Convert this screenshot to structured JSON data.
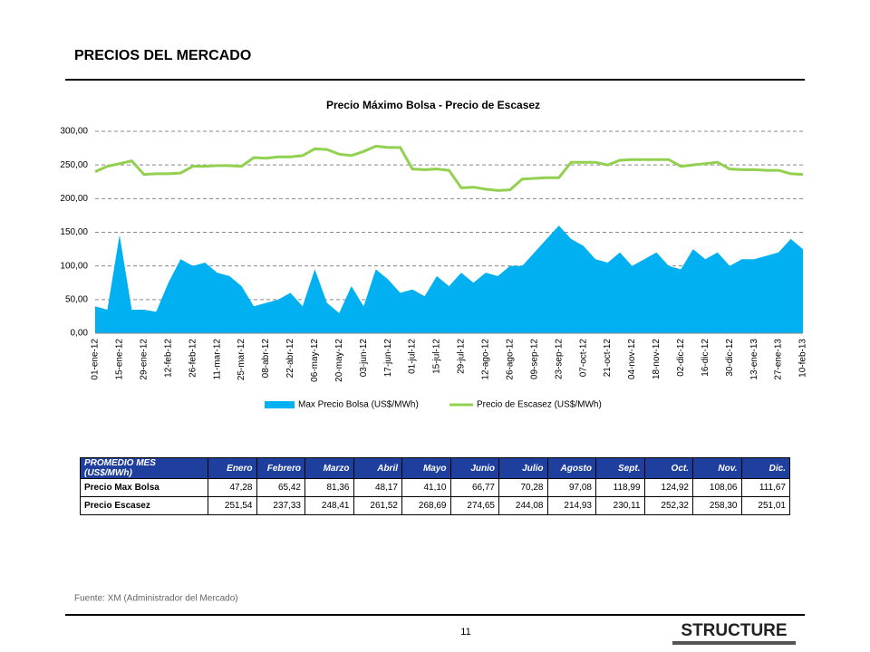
{
  "header": {
    "title": "PRECIOS DEL MERCADO"
  },
  "chart_data": {
    "type": "area-line",
    "title": "Precio Máximo Bolsa - Precio de Escasez",
    "categories": [
      "01-ene-12",
      null,
      "15-ene-12",
      null,
      "29-ene-12",
      null,
      "12-feb-12",
      null,
      "26-feb-12",
      null,
      "11-mar-12",
      null,
      "25-mar-12",
      null,
      "08-abr-12",
      null,
      "22-abr-12",
      null,
      "06-may-12",
      null,
      "20-may-12",
      null,
      "03-jun-12",
      null,
      "17-jun-12",
      null,
      "01-jul-12",
      null,
      "15-jul-12",
      null,
      "29-jul-12",
      null,
      "12-ago-12",
      null,
      "26-ago-12",
      null,
      "09-sep-12",
      null,
      "23-sep-12",
      null,
      "07-oct-12",
      null,
      "21-oct-12",
      null,
      "04-nov-12",
      null,
      "18-nov-12",
      null,
      "02-dic-12",
      null,
      "16-dic-12",
      null,
      "30-dic-12",
      null,
      "13-ene-13",
      null,
      "27-ene-13",
      null,
      "10-feb-13"
    ],
    "series": [
      {
        "name": "Max Precio Bolsa (US$/MWh)",
        "color": "#00b0f0",
        "kind": "area",
        "values": [
          40,
          35,
          146,
          35,
          35,
          32,
          75,
          110,
          100,
          105,
          90,
          85,
          70,
          40,
          45,
          50,
          60,
          40,
          95,
          45,
          30,
          70,
          40,
          95,
          80,
          60,
          65,
          55,
          85,
          70,
          90,
          75,
          90,
          85,
          100,
          100,
          120,
          140,
          160,
          140,
          130,
          110,
          105,
          120,
          100,
          110,
          120,
          100,
          95,
          125,
          110,
          120,
          100,
          110,
          110,
          115,
          120,
          140,
          125
        ]
      },
      {
        "name": "Precio de Escasez (US$/MWh)",
        "color": "#92d050",
        "kind": "line",
        "values": [
          240,
          248,
          252,
          256,
          236,
          237,
          237,
          238,
          248,
          248,
          249,
          249,
          248,
          261,
          260,
          262,
          262,
          264,
          274,
          273,
          266,
          264,
          270,
          278,
          276,
          276,
          244,
          243,
          244,
          242,
          216,
          217,
          214,
          212,
          213,
          229,
          230,
          231,
          231,
          254,
          254,
          254,
          250,
          257,
          258,
          258,
          258,
          258,
          248,
          250,
          252,
          254,
          244,
          243,
          243,
          242,
          242,
          237,
          236
        ]
      }
    ],
    "ylim": [
      0,
      300
    ],
    "yticks": [
      {
        "value": 0,
        "label": "0,00"
      },
      {
        "value": 50,
        "label": "50,00"
      },
      {
        "value": 100,
        "label": "100,00"
      },
      {
        "value": 150,
        "label": "150,00"
      },
      {
        "value": 200,
        "label": "200,00"
      },
      {
        "value": 250,
        "label": "250,00"
      },
      {
        "value": 300,
        "label": "300,00"
      }
    ],
    "grid": true,
    "legend": "bottom"
  },
  "table": {
    "header": [
      "PROMEDIO MES (US$/MWh)",
      "Enero",
      "Febrero",
      "Marzo",
      "Abril",
      "Mayo",
      "Junio",
      "Julio",
      "Agosto",
      "Sept.",
      "Oct.",
      "Nov.",
      "Dic."
    ],
    "rows": [
      [
        "Precio Max Bolsa",
        "47,28",
        "65,42",
        "81,36",
        "48,17",
        "41,10",
        "66,77",
        "70,28",
        "97,08",
        "118,99",
        "124,92",
        "108,06",
        "111,67"
      ],
      [
        "Precio Escasez",
        "251,54",
        "237,33",
        "248,41",
        "261,52",
        "268,69",
        "274,65",
        "244,08",
        "214,93",
        "230,11",
        "252,32",
        "258,30",
        "251,01"
      ]
    ]
  },
  "footer": {
    "source": "Fuente: XM (Administrador del Mercado)",
    "page": "11",
    "logo": "STRUCTURE"
  }
}
